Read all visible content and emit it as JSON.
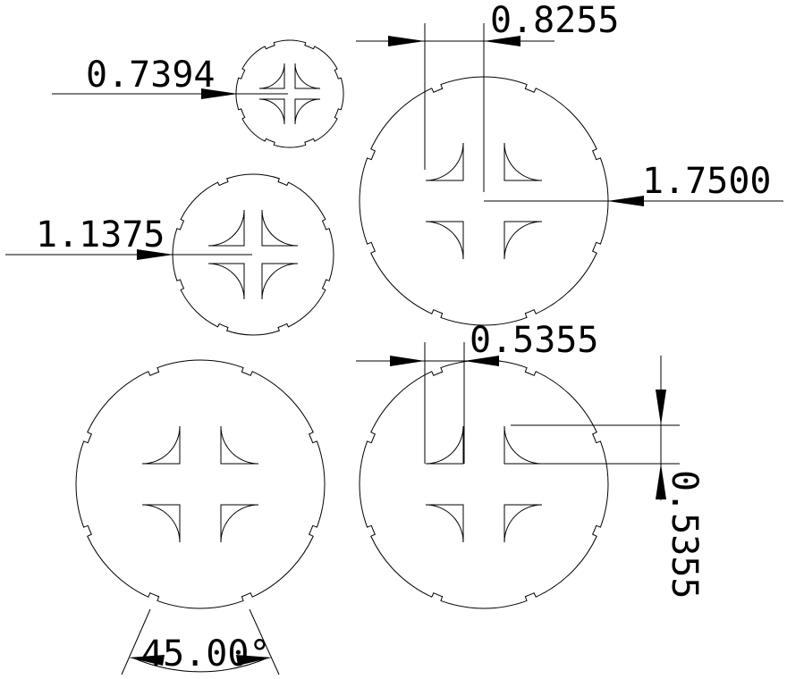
{
  "drawing": {
    "labels": {
      "small_diameter": "0.7394",
      "top_right_gap": "0.8255",
      "medium_diameter": "1.1375",
      "large_diameter": "1.7500",
      "bottom_right_gap": "0.5355",
      "side_gap": "0.5355",
      "notch_angle": "45.00°"
    }
  }
}
